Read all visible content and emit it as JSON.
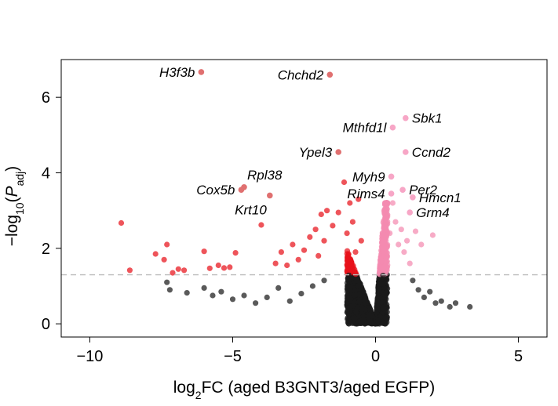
{
  "colors": {
    "non_significant": "#1a1a1a",
    "down_significant": "#e8121a",
    "up_significant": "#f48bb0",
    "highlight_down": "#e07070",
    "highlight_up": "#f7a6c6",
    "threshold_line": "#bdbdbd",
    "frame": "#000000"
  },
  "chart_data": {
    "type": "scatter",
    "subtype": "volcano",
    "xlabel": {
      "base": "log",
      "sub": "2",
      "rest": "FC (aged B3GNT3/aged EGFP)"
    },
    "ylabel": {
      "minus": "−log",
      "sub1": "10",
      "open": "(",
      "p": "P",
      "sub2": "adj",
      "close": ")"
    },
    "xlim": [
      -11,
      6
    ],
    "ylim": [
      -0.35,
      7
    ],
    "xticks": [
      -10,
      -5,
      0,
      5
    ],
    "xtick_labels": [
      "−10",
      "−5",
      "0",
      "5"
    ],
    "yticks": [
      0,
      2,
      4,
      6
    ],
    "ytick_labels": [
      "0",
      "2",
      "4",
      "6"
    ],
    "threshold_y": 1.3,
    "grid": false,
    "highlighted_genes": [
      {
        "label": "H3f3b",
        "x": -6.1,
        "y": 6.67,
        "side": "left",
        "color": "down"
      },
      {
        "label": "Chchd2",
        "x": -1.6,
        "y": 6.6,
        "side": "left",
        "color": "down"
      },
      {
        "label": "Sbk1",
        "x": 1.05,
        "y": 5.45,
        "side": "right",
        "color": "up"
      },
      {
        "label": "Mthfd1l",
        "x": 0.6,
        "y": 5.2,
        "side": "left",
        "color": "up"
      },
      {
        "label": "Ypel3",
        "x": -1.3,
        "y": 4.55,
        "side": "left",
        "color": "down"
      },
      {
        "label": "Ccnd2",
        "x": 1.05,
        "y": 4.55,
        "side": "right",
        "color": "up"
      },
      {
        "label": "Myh9",
        "x": 0.55,
        "y": 3.9,
        "side": "left",
        "color": "up"
      },
      {
        "label": "Rpl38",
        "x": -4.6,
        "y": 3.62,
        "side": "right-up",
        "color": "down"
      },
      {
        "label": "Per2",
        "x": 0.95,
        "y": 3.55,
        "side": "right",
        "color": "up"
      },
      {
        "label": "Cox5b",
        "x": -4.7,
        "y": 3.55,
        "side": "left",
        "color": "down"
      },
      {
        "label": "Rims4",
        "x": 0.55,
        "y": 3.45,
        "side": "left",
        "color": "up"
      },
      {
        "label": "Krt10",
        "x": -3.7,
        "y": 3.4,
        "side": "left-down",
        "color": "down"
      },
      {
        "label": "Hmcn1",
        "x": 1.3,
        "y": 3.35,
        "side": "right",
        "color": "up"
      },
      {
        "label": "Grm4",
        "x": 1.2,
        "y": 2.95,
        "side": "right",
        "color": "up"
      }
    ],
    "scatter_points": [
      {
        "x": -8.9,
        "y": 2.67
      },
      {
        "x": -8.6,
        "y": 1.42
      },
      {
        "x": -7.7,
        "y": 1.85
      },
      {
        "x": -7.4,
        "y": 1.7
      },
      {
        "x": -7.3,
        "y": 2.1
      },
      {
        "x": -7.1,
        "y": 1.35
      },
      {
        "x": -6.9,
        "y": 1.45
      },
      {
        "x": -6.7,
        "y": 1.42
      },
      {
        "x": -6.0,
        "y": 1.92
      },
      {
        "x": -5.8,
        "y": 1.47
      },
      {
        "x": -5.5,
        "y": 1.55
      },
      {
        "x": -5.3,
        "y": 1.48
      },
      {
        "x": -5.1,
        "y": 1.5
      },
      {
        "x": -4.9,
        "y": 1.88
      },
      {
        "x": -4.0,
        "y": 2.62
      },
      {
        "x": -3.5,
        "y": 1.6
      },
      {
        "x": -3.3,
        "y": 1.9
      },
      {
        "x": -3.1,
        "y": 1.55
      },
      {
        "x": -2.9,
        "y": 2.1
      },
      {
        "x": -2.7,
        "y": 1.7
      },
      {
        "x": -2.5,
        "y": 1.95
      },
      {
        "x": -2.3,
        "y": 2.3
      },
      {
        "x": -2.1,
        "y": 2.5
      },
      {
        "x": -2.0,
        "y": 1.8
      },
      {
        "x": -1.9,
        "y": 2.9
      },
      {
        "x": -1.8,
        "y": 2.2
      },
      {
        "x": -1.7,
        "y": 3.0
      },
      {
        "x": -1.5,
        "y": 2.6
      },
      {
        "x": -1.3,
        "y": 2.95
      },
      {
        "x": -1.1,
        "y": 3.75
      },
      {
        "x": -1.0,
        "y": 2.4
      },
      {
        "x": -0.9,
        "y": 3.2
      },
      {
        "x": -0.8,
        "y": 2.7
      },
      {
        "x": -0.6,
        "y": 3.3
      },
      {
        "x": -0.5,
        "y": 2.2
      },
      {
        "x": -0.7,
        "y": 1.9
      },
      {
        "x": 0.4,
        "y": 2.9
      },
      {
        "x": 0.5,
        "y": 2.4
      },
      {
        "x": 0.6,
        "y": 3.2
      },
      {
        "x": 0.7,
        "y": 2.7
      },
      {
        "x": 0.8,
        "y": 2.1
      },
      {
        "x": 0.9,
        "y": 2.5
      },
      {
        "x": 1.0,
        "y": 1.9
      },
      {
        "x": 1.1,
        "y": 2.2
      },
      {
        "x": 1.2,
        "y": 1.6
      },
      {
        "x": 1.4,
        "y": 2.45
      },
      {
        "x": 1.6,
        "y": 2.1
      },
      {
        "x": 2.0,
        "y": 2.35
      },
      {
        "x": -7.3,
        "y": 1.1
      },
      {
        "x": -7.2,
        "y": 0.9
      },
      {
        "x": -6.6,
        "y": 0.82
      },
      {
        "x": -6.0,
        "y": 0.95
      },
      {
        "x": -5.7,
        "y": 0.75
      },
      {
        "x": -5.4,
        "y": 0.85
      },
      {
        "x": -5.0,
        "y": 0.65
      },
      {
        "x": -4.6,
        "y": 0.75
      },
      {
        "x": -4.2,
        "y": 0.55
      },
      {
        "x": -3.8,
        "y": 0.7
      },
      {
        "x": -3.4,
        "y": 0.95
      },
      {
        "x": -3.0,
        "y": 0.6
      },
      {
        "x": -2.6,
        "y": 0.8
      },
      {
        "x": -2.2,
        "y": 1.0
      },
      {
        "x": -1.8,
        "y": 1.15
      },
      {
        "x": 1.3,
        "y": 1.15
      },
      {
        "x": 1.5,
        "y": 0.9
      },
      {
        "x": 1.7,
        "y": 0.7
      },
      {
        "x": 1.9,
        "y": 0.85
      },
      {
        "x": 2.1,
        "y": 0.55
      },
      {
        "x": 2.3,
        "y": 0.6
      },
      {
        "x": 2.6,
        "y": 0.45
      },
      {
        "x": 2.8,
        "y": 0.55
      },
      {
        "x": 3.3,
        "y": 0.45
      }
    ],
    "density": {
      "count": 1900,
      "neg_spread": 1.0,
      "pos_spread": 0.42,
      "seed": 7
    }
  }
}
